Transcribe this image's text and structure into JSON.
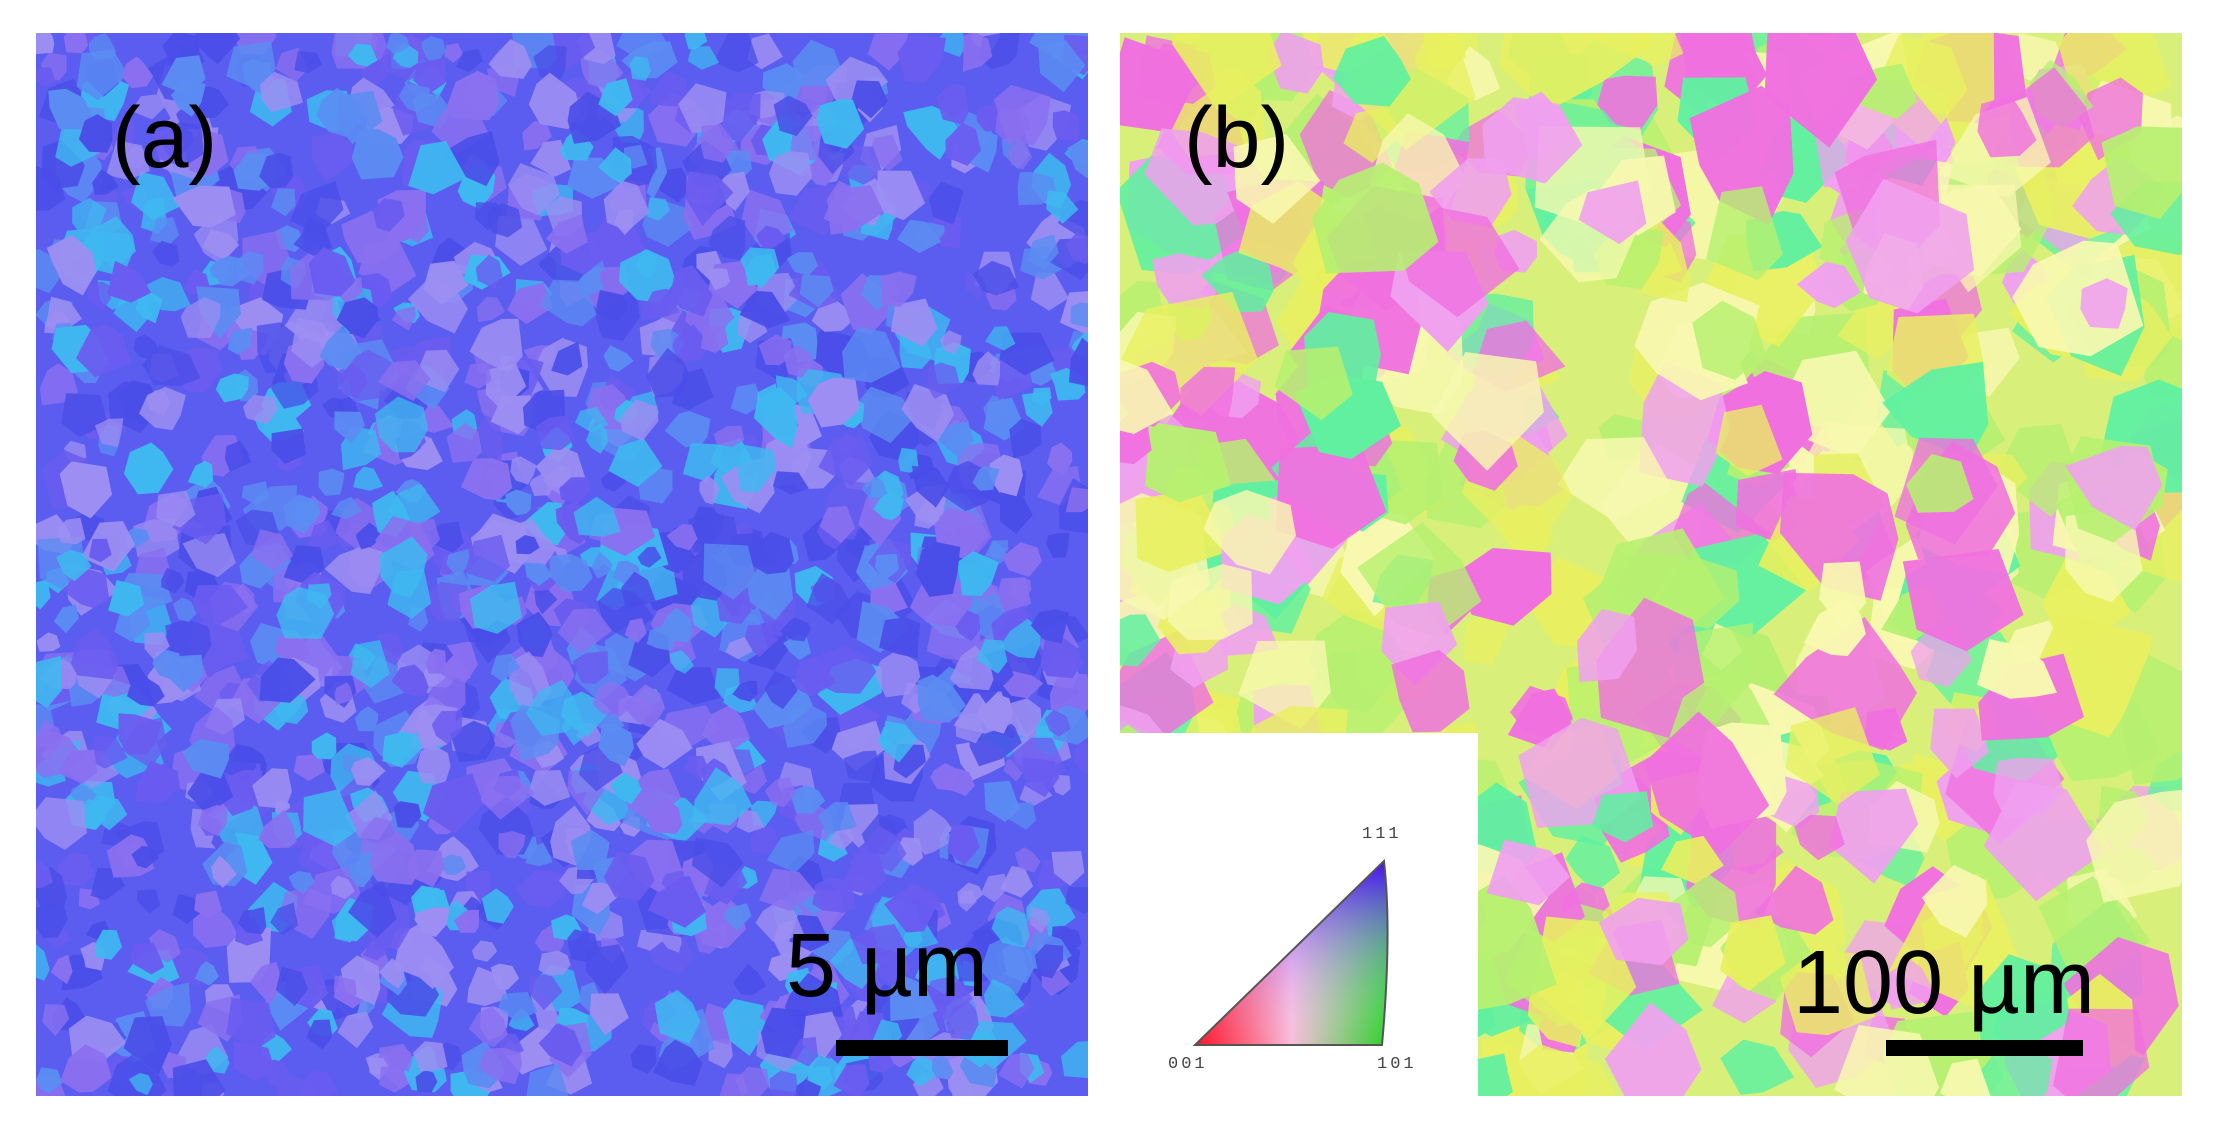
{
  "panels": [
    {
      "label": "(a)",
      "scale_bar_text": "5 µm",
      "dominant_colors": [
        "#4a4ee8",
        "#6a5cf0",
        "#5b8cf2",
        "#8a70f0",
        "#3fb8f0",
        "#9c8ef2"
      ]
    },
    {
      "label": "(b)",
      "scale_bar_text": "100 µm",
      "dominant_colors": [
        "#e8f060",
        "#f070e0",
        "#b6f070",
        "#f0a0f0",
        "#60f0a0",
        "#f8f8b0"
      ]
    }
  ],
  "ipf_legend": {
    "corner_labels": {
      "top": "111",
      "left": "001",
      "right": "101"
    },
    "colors": {
      "001": "#ff0000",
      "101": "#00ff00",
      "111": "#0000ff"
    }
  }
}
